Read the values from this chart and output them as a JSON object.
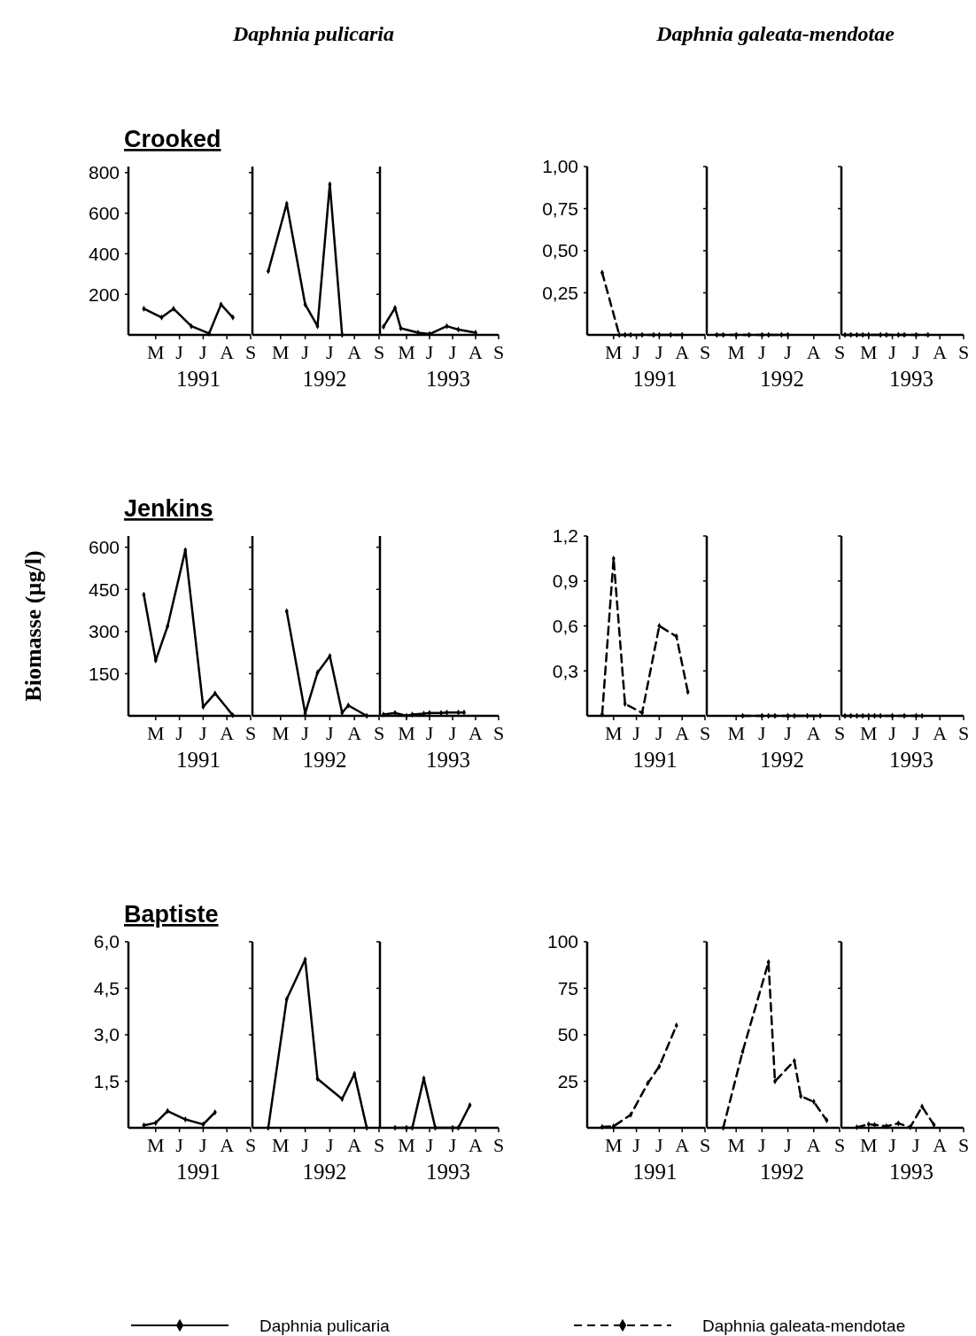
{
  "chart_data": [
    {
      "type": "line",
      "subtitle": "Crooked",
      "xlabel": "1991",
      "categories": [
        null,
        null,
        null,
        null,
        "M",
        null,
        null,
        null,
        "J",
        null,
        null,
        null,
        "J",
        null,
        null,
        null,
        "A",
        null,
        null,
        null,
        "S"
      ],
      "ylim": [
        0,
        830
      ],
      "yticks": [
        200,
        400,
        600,
        800
      ],
      "line_style": "solid",
      "marker": "diamond",
      "series": [
        {
          "color": "#000000",
          "values": [
            null,
            null,
            129,
            null,
            null,
            86,
            null,
            129,
            null,
            null,
            43,
            null,
            null,
            7,
            null,
            150,
            null,
            86,
            null,
            null,
            null
          ]
        }
      ]
    },
    {
      "type": "line",
      "title": "Daphnia pulicaria",
      "xlabel": "1992",
      "categories": [
        null,
        null,
        null,
        null,
        "M",
        null,
        null,
        null,
        "J",
        null,
        null,
        null,
        "J",
        null,
        null,
        null,
        "A",
        null,
        null,
        null,
        "S"
      ],
      "ylim": [
        0,
        830
      ],
      "yticks": [
        200,
        400,
        600,
        800
      ],
      "tick_labels": "x",
      "line_style": "solid",
      "marker": "diamond",
      "series": [
        {
          "color": "#000000",
          "values": [
            null,
            null,
            314,
            null,
            null,
            647,
            null,
            null,
            150,
            null,
            43,
            null,
            743,
            null,
            0,
            null,
            null,
            null,
            null,
            null,
            null
          ]
        }
      ]
    },
    {
      "type": "line",
      "xlabel": "1993",
      "categories": [
        null,
        null,
        null,
        null,
        "M",
        null,
        null,
        null,
        "J",
        null,
        null,
        null,
        "J",
        null,
        null,
        null,
        "A",
        null,
        null,
        null,
        "S"
      ],
      "ylim": [
        0,
        830
      ],
      "yticks": [
        200,
        400,
        600,
        800
      ],
      "tick_labels": "x",
      "line_style": "solid",
      "marker": "diamond",
      "series": [
        {
          "color": "#000000",
          "values": [
            40,
            null,
            133,
            33,
            null,
            null,
            11,
            null,
            4,
            null,
            null,
            43,
            null,
            26,
            null,
            null,
            11,
            null,
            null,
            null,
            null
          ]
        }
      ]
    },
    {
      "type": "line",
      "xlabel": "1991",
      "categories": [
        null,
        null,
        null,
        null,
        "M",
        null,
        null,
        null,
        "J",
        null,
        null,
        null,
        "J",
        null,
        null,
        null,
        "A",
        null,
        null,
        null,
        "S"
      ],
      "ylim": [
        0,
        1
      ],
      "yticks": [
        {
          "value": 0.25,
          "label": "0,25"
        },
        {
          "value": 0.5,
          "label": "0,50"
        },
        {
          "value": 0.75,
          "label": "0,75"
        },
        {
          "value": 1,
          "label": "1,00"
        }
      ],
      "line_style": "dashed",
      "marker": "diamond",
      "series": [
        {
          "color": "#000000",
          "values": [
            null,
            null,
            0.37,
            null,
            null,
            0,
            0,
            0,
            null,
            0,
            null,
            0,
            0,
            null,
            0,
            null,
            0,
            null,
            null,
            null,
            null
          ]
        }
      ]
    },
    {
      "type": "line",
      "title": "Daphnia galeata-mendotae",
      "xlabel": "1992",
      "categories": [
        null,
        null,
        null,
        null,
        "M",
        null,
        null,
        null,
        "J",
        null,
        null,
        null,
        "J",
        null,
        null,
        null,
        "A",
        null,
        null,
        null,
        "S"
      ],
      "ylim": [
        0,
        1
      ],
      "yticks": [
        0.25,
        0.5,
        0.75,
        1
      ],
      "tick_labels": "x",
      "line_style": "dashed",
      "marker": "diamond",
      "series": [
        {
          "color": "#000000",
          "values": [
            null,
            0,
            0,
            null,
            0,
            null,
            0,
            null,
            0,
            0,
            null,
            0,
            0,
            null,
            null,
            null,
            null,
            null,
            null,
            null,
            null
          ]
        }
      ]
    },
    {
      "type": "line",
      "xlabel": "1993",
      "categories": [
        null,
        null,
        null,
        null,
        "M",
        null,
        null,
        null,
        "J",
        null,
        null,
        null,
        "J",
        null,
        null,
        null,
        "A",
        null,
        null,
        null,
        "S"
      ],
      "ylim": [
        0,
        1
      ],
      "yticks": [
        0.25,
        0.5,
        0.75,
        1
      ],
      "tick_labels": "x",
      "line_style": "dashed",
      "marker": "diamond",
      "series": [
        {
          "color": "#000000",
          "values": [
            0,
            0,
            0,
            0,
            0,
            null,
            0,
            0,
            null,
            0,
            0,
            null,
            0,
            null,
            0,
            null,
            null,
            null,
            null,
            null,
            null
          ]
        }
      ]
    },
    {
      "type": "line",
      "subtitle": "Jenkins",
      "ylabel": "Biomasse (µg/l)",
      "xlabel": "1991",
      "categories": [
        null,
        null,
        null,
        null,
        "M",
        null,
        null,
        null,
        "J",
        null,
        null,
        null,
        "J",
        null,
        null,
        null,
        "A",
        null,
        null,
        null,
        "S"
      ],
      "ylim": [
        0,
        640
      ],
      "yticks": [
        150,
        300,
        450,
        600
      ],
      "line_style": "solid",
      "marker": "diamond",
      "series": [
        {
          "color": "#000000",
          "values": [
            null,
            null,
            431,
            null,
            197,
            null,
            319,
            null,
            null,
            590,
            null,
            null,
            32,
            null,
            80,
            null,
            null,
            2,
            null,
            null,
            null
          ]
        }
      ]
    },
    {
      "type": "line",
      "xlabel": "1992",
      "categories": [
        null,
        null,
        null,
        null,
        "M",
        null,
        null,
        null,
        "J",
        null,
        null,
        null,
        "J",
        null,
        null,
        null,
        "A",
        null,
        null,
        null,
        "S"
      ],
      "ylim": [
        0,
        640
      ],
      "yticks": [
        150,
        300,
        450,
        600
      ],
      "tick_labels": "x",
      "line_style": "solid",
      "marker": "diamond",
      "series": [
        {
          "color": "#000000",
          "values": [
            null,
            null,
            null,
            null,
            null,
            372,
            null,
            null,
            9,
            null,
            154,
            null,
            213,
            null,
            11,
            37,
            null,
            null,
            0,
            null,
            null
          ]
        }
      ]
    },
    {
      "type": "line",
      "xlabel": "1993",
      "categories": [
        null,
        null,
        null,
        null,
        "M",
        null,
        null,
        null,
        "J",
        null,
        null,
        null,
        "J",
        null,
        null,
        null,
        "A",
        null,
        null,
        null,
        "S"
      ],
      "ylim": [
        0,
        640
      ],
      "yticks": [
        150,
        300,
        450,
        600
      ],
      "tick_labels": "x",
      "line_style": "solid",
      "marker": "diamond",
      "series": [
        {
          "color": "#000000",
          "values": [
            5,
            null,
            10,
            null,
            0,
            5,
            null,
            8,
            10,
            null,
            10,
            12,
            null,
            12,
            12,
            null,
            null,
            null,
            null,
            null,
            null
          ]
        }
      ]
    },
    {
      "type": "line",
      "xlabel": "1991",
      "categories": [
        null,
        null,
        null,
        null,
        "M",
        null,
        null,
        null,
        "J",
        null,
        null,
        null,
        "J",
        null,
        null,
        null,
        "A",
        null,
        null,
        null,
        "S"
      ],
      "ylim": [
        0,
        1.2
      ],
      "yticks": [
        {
          "value": 0.3,
          "label": "0,3"
        },
        {
          "value": 0.6,
          "label": "0,6"
        },
        {
          "value": 0.9,
          "label": "0,9"
        },
        {
          "value": 1.2,
          "label": "1,2"
        }
      ],
      "line_style": "dashed",
      "marker": "diamond",
      "series": [
        {
          "color": "#000000",
          "values": [
            null,
            null,
            0.01,
            null,
            1.05,
            null,
            0.08,
            null,
            null,
            0.02,
            null,
            null,
            0.6,
            null,
            null,
            0.53,
            null,
            0.16,
            null,
            null,
            null
          ]
        }
      ]
    },
    {
      "type": "line",
      "xlabel": "1992",
      "categories": [
        null,
        null,
        null,
        null,
        "M",
        null,
        null,
        null,
        "J",
        null,
        null,
        null,
        "J",
        null,
        null,
        null,
        "A",
        null,
        null,
        null,
        "S"
      ],
      "ylim": [
        0,
        1.2
      ],
      "yticks": [
        0.3,
        0.6,
        0.9,
        1.2
      ],
      "tick_labels": "x",
      "line_style": "dashed",
      "marker": "diamond",
      "series": [
        {
          "color": "#000000",
          "values": [
            null,
            null,
            null,
            null,
            null,
            0,
            null,
            null,
            0,
            0,
            0,
            null,
            0,
            0,
            null,
            0,
            null,
            0,
            null,
            null,
            null
          ]
        }
      ]
    },
    {
      "type": "line",
      "xlabel": "1993",
      "categories": [
        null,
        null,
        null,
        null,
        "M",
        null,
        null,
        null,
        "J",
        null,
        null,
        null,
        "J",
        null,
        null,
        null,
        "A",
        null,
        null,
        null,
        "S"
      ],
      "ylim": [
        0,
        1.2
      ],
      "yticks": [
        0.3,
        0.6,
        0.9,
        1.2
      ],
      "tick_labels": "x",
      "line_style": "dashed",
      "marker": "diamond",
      "series": [
        {
          "color": "#000000",
          "values": [
            0,
            0,
            0,
            0,
            0,
            0,
            0,
            null,
            0,
            null,
            0,
            null,
            0,
            0,
            null,
            null,
            null,
            null,
            null,
            null,
            null
          ]
        }
      ]
    },
    {
      "type": "line",
      "subtitle": "Baptiste",
      "xlabel": "1991",
      "categories": [
        null,
        null,
        null,
        null,
        "M",
        null,
        null,
        null,
        "J",
        null,
        null,
        null,
        "J",
        null,
        null,
        null,
        "A",
        null,
        null,
        null,
        "S"
      ],
      "ylim": [
        0,
        6
      ],
      "yticks": [
        {
          "value": 1.5,
          "label": "1,5"
        },
        {
          "value": 3,
          "label": "3,0"
        },
        {
          "value": 4.5,
          "label": "4,5"
        },
        {
          "value": 6,
          "label": "6,0"
        }
      ],
      "line_style": "solid",
      "marker": "diamond",
      "legend": "bottom",
      "series": [
        {
          "name": "Daphnia pulicaria",
          "color": "#000000",
          "values": [
            null,
            null,
            0.08,
            null,
            0.16,
            null,
            0.54,
            null,
            null,
            0.27,
            null,
            null,
            0.11,
            null,
            0.5,
            null,
            null,
            null,
            null,
            null,
            null
          ]
        }
      ]
    },
    {
      "type": "line",
      "xlabel": "1992",
      "categories": [
        null,
        null,
        null,
        null,
        "M",
        null,
        null,
        null,
        "J",
        null,
        null,
        null,
        "J",
        null,
        null,
        null,
        "A",
        null,
        null,
        null,
        "S"
      ],
      "ylim": [
        0,
        6
      ],
      "yticks": [
        1.5,
        3,
        4.5,
        6
      ],
      "tick_labels": "x",
      "line_style": "solid",
      "marker": "diamond",
      "series": [
        {
          "color": "#000000",
          "values": [
            null,
            null,
            0,
            null,
            null,
            4.15,
            null,
            null,
            5.43,
            null,
            1.58,
            null,
            null,
            null,
            0.93,
            null,
            1.74,
            null,
            0,
            null,
            null
          ]
        }
      ]
    },
    {
      "type": "line",
      "xlabel": "1993",
      "categories": [
        null,
        null,
        null,
        null,
        "M",
        null,
        null,
        null,
        "J",
        null,
        null,
        null,
        "J",
        null,
        null,
        null,
        "A",
        null,
        null,
        null,
        "S"
      ],
      "ylim": [
        0,
        6
      ],
      "yticks": [
        1.5,
        3,
        4.5,
        6
      ],
      "tick_labels": "x",
      "line_style": "solid",
      "marker": "diamond",
      "series": [
        {
          "color": "#000000",
          "values": [
            null,
            null,
            0,
            null,
            0,
            0,
            null,
            1.59,
            null,
            0,
            null,
            null,
            0,
            0,
            null,
            0.73,
            null,
            null,
            null,
            null,
            null
          ]
        }
      ]
    },
    {
      "type": "line",
      "xlabel": "1991",
      "categories": [
        null,
        null,
        null,
        null,
        "M",
        null,
        null,
        null,
        "J",
        null,
        null,
        null,
        "J",
        null,
        null,
        null,
        "A",
        null,
        null,
        null,
        "S"
      ],
      "ylim": [
        0,
        100
      ],
      "yticks": [
        25,
        50,
        75,
        100
      ],
      "line_style": "dashed",
      "marker": "diamond",
      "legend": "bottom",
      "series": [
        {
          "name": "Daphnia galeata-mendotae",
          "color": "#000000",
          "values": [
            null,
            null,
            0.5,
            null,
            0.8,
            null,
            null,
            7,
            null,
            null,
            24,
            null,
            33,
            null,
            null,
            55,
            null,
            null,
            null,
            null,
            null
          ]
        }
      ]
    },
    {
      "type": "line",
      "xlabel": "1992",
      "categories": [
        null,
        null,
        null,
        null,
        "M",
        null,
        null,
        null,
        "J",
        null,
        null,
        null,
        "J",
        null,
        null,
        null,
        "A",
        null,
        null,
        null,
        "S"
      ],
      "ylim": [
        0,
        100
      ],
      "yticks": [
        25,
        50,
        75,
        100
      ],
      "tick_labels": "x",
      "line_style": "dashed",
      "marker": "diamond",
      "series": [
        {
          "color": "#000000",
          "values": [
            null,
            null,
            0,
            null,
            null,
            41,
            null,
            null,
            null,
            89,
            25,
            null,
            null,
            36,
            17,
            null,
            14,
            null,
            4,
            null,
            null
          ]
        }
      ]
    },
    {
      "type": "line",
      "xlabel": "1993",
      "categories": [
        null,
        null,
        null,
        null,
        "M",
        null,
        null,
        null,
        "J",
        null,
        null,
        null,
        "J",
        null,
        null,
        null,
        "A",
        null,
        null,
        null,
        "S"
      ],
      "ylim": [
        0,
        100
      ],
      "yticks": [
        25,
        50,
        75,
        100
      ],
      "tick_labels": "x",
      "line_style": "dashed",
      "marker": "diamond",
      "series": [
        {
          "color": "#000000",
          "values": [
            null,
            null,
            0.3,
            null,
            1.9,
            1.6,
            null,
            0.8,
            null,
            2.4,
            null,
            0.3,
            null,
            11.4,
            null,
            1.6,
            null,
            null,
            null,
            null,
            null
          ]
        }
      ]
    }
  ]
}
